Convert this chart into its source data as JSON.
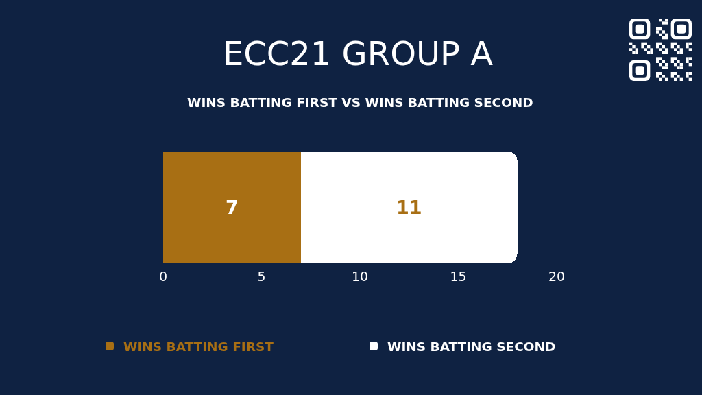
{
  "chart_data": {
    "type": "bar",
    "orientation": "horizontal",
    "stacked": true,
    "title": "ECC21 GROUP A",
    "subtitle": "WINS BATTING FIRST VS WINS BATTING SECOND",
    "categories": [
      null
    ],
    "series": [
      {
        "name": "WINS BATTING FIRST",
        "color": "#a86f14",
        "values": [
          7
        ]
      },
      {
        "name": "WINS BATTING SECOND",
        "color": "#ffffff",
        "values": [
          11
        ]
      }
    ],
    "xlim": [
      0,
      20
    ],
    "xticks": [
      0,
      5,
      10,
      15,
      20
    ],
    "tick_labels": "x",
    "data_labels": true,
    "legend": "bottom"
  }
}
